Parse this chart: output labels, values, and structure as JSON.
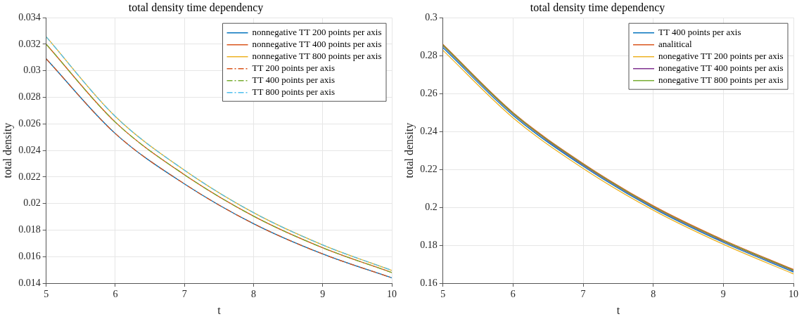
{
  "chart_data": [
    {
      "type": "line",
      "title": "total density time dependency",
      "xlabel": "t",
      "ylabel": "total density",
      "x": [
        5,
        6,
        7,
        8,
        9,
        10
      ],
      "xlim": [
        5,
        10
      ],
      "xticks": [
        5,
        6,
        7,
        8,
        9,
        10
      ],
      "ylim": [
        0.014,
        0.034
      ],
      "yticks": [
        0.014,
        0.016,
        0.018,
        0.02,
        0.022,
        0.024,
        0.026,
        0.028,
        0.03,
        0.032,
        0.034
      ],
      "grid": true,
      "legend": "top right",
      "marker": "none",
      "series": [
        {
          "name": "nonnegative TT 200 points per axis",
          "color": "#0072bd",
          "line_style": "solid",
          "values": [
            0.0309,
            0.02527,
            0.02148,
            0.01848,
            0.0162,
            0.0144
          ]
        },
        {
          "name": "nonnegative TT 400 points per axis",
          "color": "#d95319",
          "line_style": "solid",
          "values": [
            0.032,
            0.02613,
            0.02217,
            0.01905,
            0.01667,
            0.0148
          ]
        },
        {
          "name": "nonnegative TT 800 points per axis",
          "color": "#edb120",
          "line_style": "solid",
          "values": [
            0.03256,
            0.02656,
            0.02251,
            0.01931,
            0.01688,
            0.01496
          ]
        },
        {
          "name": "TT 200 points per axis",
          "color": "#d95319",
          "line_style": "dashed",
          "values": [
            0.0309,
            0.02527,
            0.02148,
            0.01848,
            0.0162,
            0.0144
          ]
        },
        {
          "name": "TT 400 points per axis",
          "color": "#77ac30",
          "line_style": "dashed",
          "values": [
            0.032,
            0.02613,
            0.02217,
            0.01905,
            0.01667,
            0.0148
          ]
        },
        {
          "name": "TT 800 points per axis",
          "color": "#4dbeee",
          "line_style": "dashed",
          "values": [
            0.03256,
            0.02656,
            0.02251,
            0.01931,
            0.01688,
            0.01496
          ]
        }
      ]
    },
    {
      "type": "line",
      "title": "total density time dependency",
      "xlabel": "t",
      "ylabel": "total density",
      "x": [
        5,
        6,
        7,
        8,
        9,
        10
      ],
      "xlim": [
        5,
        10
      ],
      "xticks": [
        5,
        6,
        7,
        8,
        9,
        10
      ],
      "ylim": [
        0.16,
        0.3
      ],
      "yticks": [
        0.16,
        0.18,
        0.2,
        0.22,
        0.24,
        0.26,
        0.28,
        0.3
      ],
      "grid": true,
      "legend": "top right",
      "marker": "none",
      "series": [
        {
          "name": "TT 400 points per axis",
          "color": "#0072bd",
          "line_style": "solid",
          "values": [
            0.2842,
            0.2485,
            0.2217,
            0.1995,
            0.1815,
            0.1659
          ]
        },
        {
          "name": "analitical",
          "color": "#d95319",
          "line_style": "solid",
          "values": [
            0.2859,
            0.25,
            0.2231,
            0.2008,
            0.1828,
            0.1672
          ]
        },
        {
          "name": "nonegative TT 200 points per axis",
          "color": "#edb120",
          "line_style": "solid",
          "values": [
            0.2828,
            0.2472,
            0.2205,
            0.1985,
            0.1805,
            0.1649
          ]
        },
        {
          "name": "nonegative TT 400 points per axis",
          "color": "#7e2f8e",
          "line_style": "solid",
          "values": [
            0.2852,
            0.2493,
            0.2224,
            0.2001,
            0.1821,
            0.1665
          ]
        },
        {
          "name": "nonegative TT 800 points per axis",
          "color": "#77ac30",
          "line_style": "solid",
          "values": [
            0.2855,
            0.2496,
            0.2227,
            0.2004,
            0.1824,
            0.1668
          ]
        }
      ]
    }
  ]
}
